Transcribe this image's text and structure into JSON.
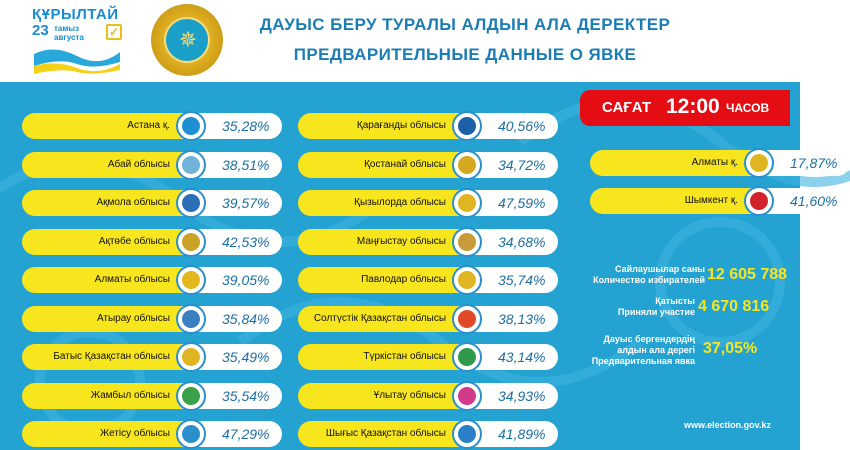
{
  "header": {
    "logo": {
      "title": "ҚҰРЫЛТАЙ",
      "day": "23",
      "date_line1": "тамыз",
      "date_line2": "августа"
    },
    "title_kz": "ДАУЫС БЕРУ ТУРАЛЫ АЛДЫН АЛА ДЕРЕКТЕР",
    "title_ru": "ПРЕДВАРИТЕЛЬНЫЕ ДАННЫЕ О ЯВКЕ"
  },
  "time": {
    "prefix": "САҒАТ",
    "value": "12:00",
    "suffix": "ЧАСОВ"
  },
  "colors": {
    "panel": "#24a3d2",
    "pill": "#f7e51e",
    "accent_red": "#e30d13",
    "value_text": "#1c6fa3",
    "stat_value": "#f7e51e"
  },
  "regions_col1": [
    {
      "name": "Астана қ.",
      "value": "35,28%",
      "icon": "astana-emblem-icon",
      "color": "#1e8fd0"
    },
    {
      "name": "Абай облысы",
      "value": "38,51%",
      "icon": "abai-emblem-icon",
      "color": "#6fb3d9"
    },
    {
      "name": "Ақмола облысы",
      "value": "39,57%",
      "icon": "akmola-emblem-icon",
      "color": "#2a6fb5"
    },
    {
      "name": "Ақтөбе облысы",
      "value": "42,53%",
      "icon": "aktobe-emblem-icon",
      "color": "#c9a227"
    },
    {
      "name": "Алматы облысы",
      "value": "39,05%",
      "icon": "almaty-region-emblem-icon",
      "color": "#e2b81e"
    },
    {
      "name": "Атырау облысы",
      "value": "35,84%",
      "icon": "atyrau-emblem-icon",
      "color": "#3a7fc0"
    },
    {
      "name": "Батыс Қазақстан облысы",
      "value": "35,49%",
      "icon": "west-kazakhstan-emblem-icon",
      "color": "#e0b522"
    },
    {
      "name": "Жамбыл облысы",
      "value": "35,54%",
      "icon": "zhambyl-emblem-icon",
      "color": "#3aa04a"
    },
    {
      "name": "Жетісу облысы",
      "value": "47,29%",
      "icon": "zhetysu-emblem-icon",
      "color": "#2a8fcb"
    }
  ],
  "regions_col2": [
    {
      "name": "Қарағанды облысы",
      "value": "40,56%",
      "icon": "karaganda-emblem-icon",
      "color": "#1d5fa8"
    },
    {
      "name": "Қостанай облысы",
      "value": "34,72%",
      "icon": "kostanay-emblem-icon",
      "color": "#d4a91f"
    },
    {
      "name": "Қызылорда облысы",
      "value": "47,59%",
      "icon": "kyzylorda-emblem-icon",
      "color": "#e0b522"
    },
    {
      "name": "Маңғыстау облысы",
      "value": "34,68%",
      "icon": "mangystau-emblem-icon",
      "color": "#c99a3a"
    },
    {
      "name": "Павлодар облысы",
      "value": "35,74%",
      "icon": "pavlodar-emblem-icon",
      "color": "#e0b522"
    },
    {
      "name": "Солтүстік Қазақстан облысы",
      "value": "38,13%",
      "icon": "north-kazakhstan-emblem-icon",
      "color": "#e04a2a"
    },
    {
      "name": "Түркістан облысы",
      "value": "43,14%",
      "icon": "turkistan-emblem-icon",
      "color": "#2f9a4a"
    },
    {
      "name": "Ұлытау облысы",
      "value": "34,93%",
      "icon": "ulytau-emblem-icon",
      "color": "#d23a8a"
    },
    {
      "name": "Шығыс Қазақстан облысы",
      "value": "41,89%",
      "icon": "east-kazakhstan-emblem-icon",
      "color": "#2a7fc8"
    }
  ],
  "regions_col3": [
    {
      "name": "Алматы қ.",
      "value": "17,87%",
      "icon": "almaty-city-emblem-icon",
      "color": "#e0b522"
    },
    {
      "name": "Шымкент қ.",
      "value": "41,60%",
      "icon": "shymkent-emblem-icon",
      "color": "#d2232a"
    }
  ],
  "stats": {
    "voters_label_kz": "Сайлаушылар саны",
    "voters_label_ru": "Количество избирателей",
    "voters_value": "12 605 788",
    "participated_label_kz": "Қатысты",
    "participated_label_ru": "Приняли участие",
    "participated_value": "4 670 816",
    "turnout_label_1": "Дауыс бергендердің",
    "turnout_label_2": "алдын ала дерегі",
    "turnout_label_3": "Предварительная явка",
    "turnout_value": "37,05%"
  },
  "footer": {
    "website": "www.election.gov.kz"
  }
}
